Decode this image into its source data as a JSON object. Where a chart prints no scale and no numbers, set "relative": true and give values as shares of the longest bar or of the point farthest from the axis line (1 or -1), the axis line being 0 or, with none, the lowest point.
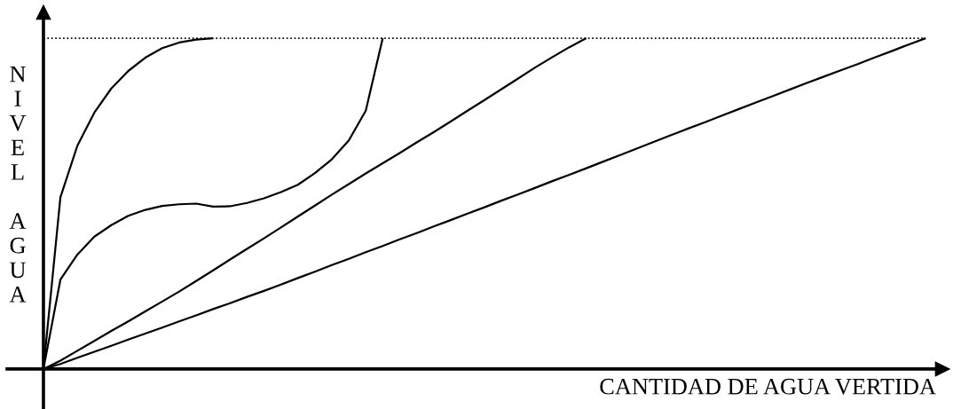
{
  "chart_data": {
    "type": "line",
    "relative": true,
    "xlabel": "CANTIDAD DE AGUA VERTIDA",
    "ylabel": "NIVEL AGUA",
    "line_style": "solid",
    "categories": [
      null,
      null,
      null,
      null,
      null,
      null,
      null,
      null,
      null,
      null,
      null,
      null,
      null,
      null,
      null,
      null,
      null,
      null,
      null,
      null,
      null,
      null,
      null,
      null,
      null,
      null,
      null,
      null,
      null,
      null,
      null,
      null,
      null,
      null,
      null,
      null,
      null,
      null,
      null,
      null,
      null,
      null,
      null,
      null,
      null,
      null,
      null,
      null,
      null,
      null,
      null,
      null,
      null
    ],
    "series": [
      {
        "color": "#000000",
        "values": [
          0,
          0.519,
          0.675,
          0.775,
          0.848,
          0.901,
          0.941,
          0.97,
          0.987,
          0.996,
          1.0,
          null,
          null,
          null,
          null,
          null,
          null,
          null,
          null,
          null,
          null,
          null,
          null,
          null,
          null,
          null,
          null,
          null,
          null,
          null,
          null,
          null,
          null,
          null,
          null,
          null,
          null,
          null,
          null,
          null,
          null,
          null,
          null,
          null,
          null,
          null,
          null,
          null,
          null,
          null,
          null,
          null,
          null
        ]
      },
      {
        "color": "#000000",
        "values": [
          0,
          0.27,
          0.346,
          0.4,
          0.435,
          0.463,
          0.481,
          0.493,
          0.498,
          0.5,
          0.491,
          0.492,
          0.502,
          0.516,
          0.535,
          0.557,
          0.592,
          0.634,
          0.691,
          0.781,
          1.0,
          null,
          null,
          null,
          null,
          null,
          null,
          null,
          null,
          null,
          null,
          null,
          null,
          null,
          null,
          null,
          null,
          null,
          null,
          null,
          null,
          null,
          null,
          null,
          null,
          null,
          null,
          null,
          null,
          null,
          null,
          null,
          null
        ]
      },
      {
        "color": "#000000",
        "values": [
          0,
          0.025,
          0.055,
          0.085,
          0.115,
          0.144,
          0.174,
          0.204,
          0.234,
          0.266,
          0.298,
          0.331,
          0.363,
          0.395,
          0.428,
          0.461,
          0.494,
          0.527,
          0.559,
          0.591,
          0.622,
          0.653,
          0.685,
          0.716,
          0.748,
          0.781,
          0.813,
          0.846,
          0.879,
          0.912,
          0.943,
          0.973,
          1.0,
          null,
          null,
          null,
          null,
          null,
          null,
          null,
          null,
          null,
          null,
          null,
          null,
          null,
          null,
          null,
          null,
          null,
          null,
          null,
          null
        ]
      },
      {
        "color": "#000000",
        "values": [
          0,
          0.015,
          0.034,
          0.052,
          0.07,
          0.089,
          0.107,
          0.125,
          0.144,
          0.162,
          0.181,
          0.199,
          0.218,
          0.236,
          0.255,
          0.275,
          0.294,
          0.314,
          0.333,
          0.353,
          0.372,
          0.392,
          0.411,
          0.431,
          0.45,
          0.47,
          0.489,
          0.509,
          0.528,
          0.548,
          0.568,
          0.587,
          0.607,
          0.627,
          0.647,
          0.667,
          0.687,
          0.707,
          0.727,
          0.746,
          0.766,
          0.786,
          0.806,
          0.825,
          0.845,
          0.865,
          0.884,
          0.903,
          0.922,
          0.942,
          0.961,
          0.981,
          1.0
        ]
      }
    ],
    "ref_lines": [
      {
        "axis": "y",
        "value": 1,
        "color": "#000000",
        "line_style": "dotted"
      }
    ]
  }
}
